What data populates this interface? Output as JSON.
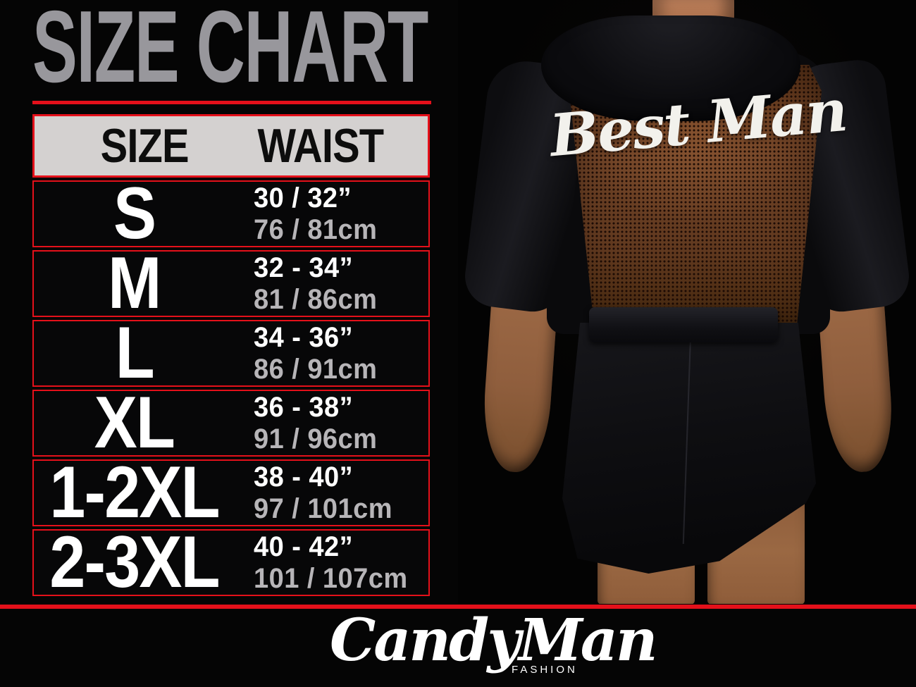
{
  "page": {
    "title": "SIZE CHART"
  },
  "table": {
    "header": {
      "size": "SIZE",
      "waist": "WAIST"
    },
    "rows": [
      {
        "size": "S",
        "waist_in": "30 / 32”",
        "waist_cm": "76 / 81cm"
      },
      {
        "size": "M",
        "waist_in": "32 - 34”",
        "waist_cm": "81 / 86cm"
      },
      {
        "size": "L",
        "waist_in": "34 - 36”",
        "waist_cm": "86 / 91cm"
      },
      {
        "size": "XL",
        "waist_in": "36 - 38”",
        "waist_cm": "91 / 96cm"
      },
      {
        "size": "1-2XL",
        "waist_in": "38 - 40”",
        "waist_cm": "97 / 101cm"
      },
      {
        "size": "2-3XL",
        "waist_in": "40 - 42”",
        "waist_cm": "101 / 107cm"
      }
    ]
  },
  "photo": {
    "print": "Best Man"
  },
  "brand": {
    "name": "CandyMan",
    "tagline": "FASHION"
  },
  "colors": {
    "accent_red": "#e4101a",
    "title_gray": "#98979c",
    "header_bg": "#d4d1d0",
    "inches_text": "#ffffff",
    "cm_text": "#b7b5b8",
    "background": "#050505",
    "mesh_brown": "#6e432a"
  },
  "chart_data": {
    "type": "table",
    "title": "SIZE CHART",
    "columns": [
      "SIZE",
      "WAIST"
    ],
    "rows": [
      [
        "S",
        "30 / 32”",
        "76 / 81cm"
      ],
      [
        "M",
        "32 - 34”",
        "81 / 86cm"
      ],
      [
        "L",
        "34 - 36”",
        "86 / 91cm"
      ],
      [
        "XL",
        "36 - 38”",
        "91 / 96cm"
      ],
      [
        "1-2XL",
        "38 - 40”",
        "97 / 101cm"
      ],
      [
        "2-3XL",
        "40 - 42”",
        "101 / 107cm"
      ]
    ]
  }
}
